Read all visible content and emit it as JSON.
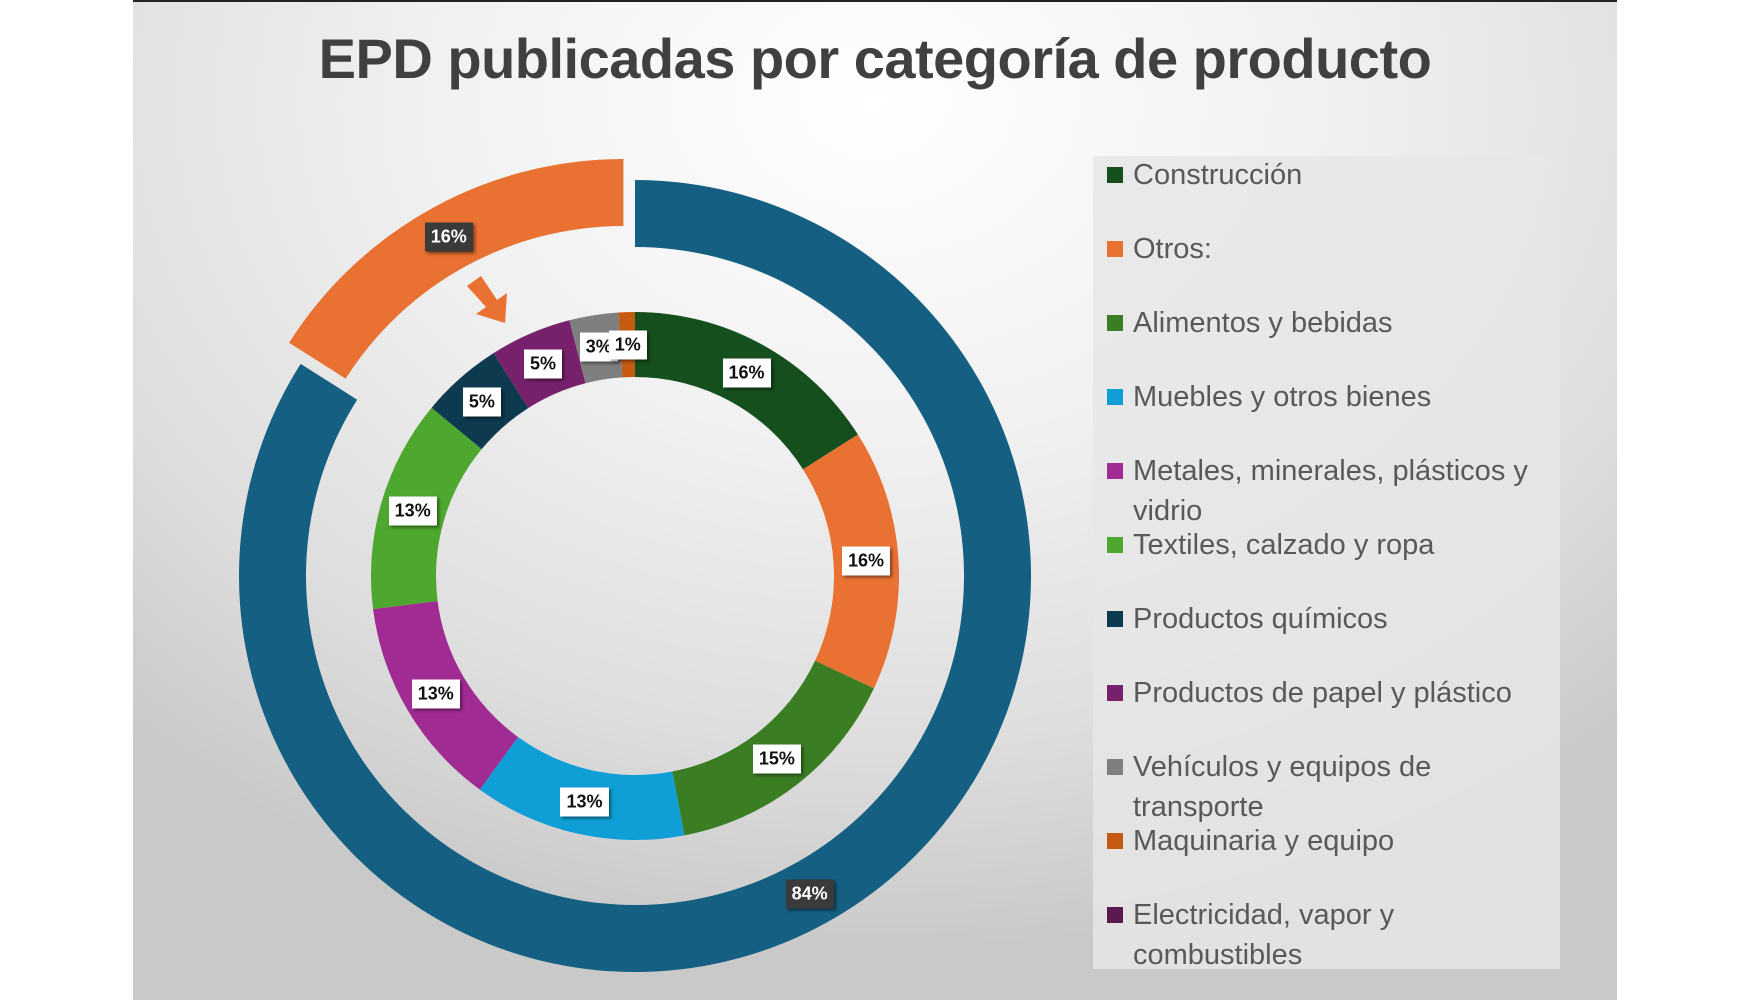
{
  "chart_data": {
    "type": "pie",
    "subtype": "nested-doughnut",
    "title": "EPD publicadas por categoría de producto",
    "legend_position": "right",
    "inner_ring": {
      "categories": [
        "Construcción",
        "Otros:",
        "Alimentos y bebidas",
        "Muebles y otros bienes",
        "Metales, minerales, plásticos y vidrio",
        "Textiles, calzado y ropa",
        "Productos químicos",
        "Productos de papel y plástico",
        "Vehículos y equipos de transporte",
        "Maquinaria y equipo",
        "Electricidad, vapor y combustibles"
      ],
      "values": [
        16,
        16,
        15,
        13,
        13,
        13,
        5,
        5,
        3,
        1,
        0
      ],
      "labels": [
        "16%",
        "16%",
        "15%",
        "13%",
        "13%",
        "13%",
        "5%",
        "5%",
        "3%",
        "1%",
        ""
      ],
      "colors": [
        "#164f1e",
        "#e97132",
        "#3b7d23",
        "#0f9ed5",
        "#a02b93",
        "#4ea72e",
        "#0e3a4f",
        "#77206b",
        "#7f7f7f",
        "#c55a11",
        "#5a1a50"
      ]
    },
    "outer_ring": {
      "values": [
        84,
        16
      ],
      "labels": [
        "84%",
        "16%"
      ],
      "colors": [
        "#156082",
        "#e97132"
      ],
      "exploded": [
        false,
        true
      ]
    },
    "annotation": "arrow-icon"
  }
}
